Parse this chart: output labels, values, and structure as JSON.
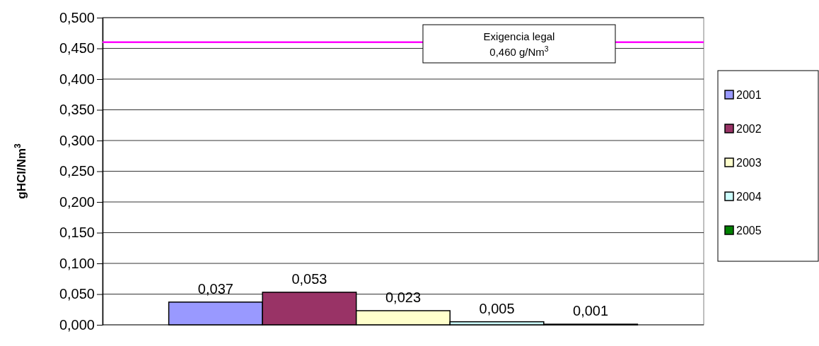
{
  "chart_data": {
    "type": "bar",
    "ylabel": "gHCl/Nm$^{3}$",
    "categories": [
      null
    ],
    "series": [
      {
        "name": "2001",
        "color": "#9999ff",
        "values": [
          0.037
        ],
        "value_labels": [
          "0,037"
        ]
      },
      {
        "name": "2002",
        "color": "#993366",
        "values": [
          0.053
        ],
        "value_labels": [
          "0,053"
        ]
      },
      {
        "name": "2003",
        "color": "#ffffcc",
        "values": [
          0.023
        ],
        "value_labels": [
          "0,023"
        ]
      },
      {
        "name": "2004",
        "color": "#ccffff",
        "values": [
          0.005
        ],
        "value_labels": [
          "0,005"
        ]
      },
      {
        "name": "2005",
        "color": "#008000",
        "values": [
          0.001
        ],
        "value_labels": [
          "0,001"
        ]
      }
    ],
    "ylim": [
      0,
      0.5
    ],
    "yticks": [
      {
        "value": 0,
        "label": "0,000"
      },
      {
        "value": 0.05,
        "label": "0,050"
      },
      {
        "value": 0.1,
        "label": "0,100"
      },
      {
        "value": 0.15,
        "label": "0,150"
      },
      {
        "value": 0.2,
        "label": "0,200"
      },
      {
        "value": 0.25,
        "label": "0,250"
      },
      {
        "value": 0.3,
        "label": "0,300"
      },
      {
        "value": 0.35,
        "label": "0,350"
      },
      {
        "value": 0.4,
        "label": "0,400"
      },
      {
        "value": 0.45,
        "label": "0,450"
      },
      {
        "value": 0.5,
        "label": "0,500"
      }
    ],
    "grid": "y",
    "legend": "right",
    "ref_lines": [
      {
        "axis": "y",
        "value": 0.46,
        "label": "Exigencia legal\n0,460 g/Nm$^{3}$",
        "color": "#ff00ff"
      }
    ]
  }
}
